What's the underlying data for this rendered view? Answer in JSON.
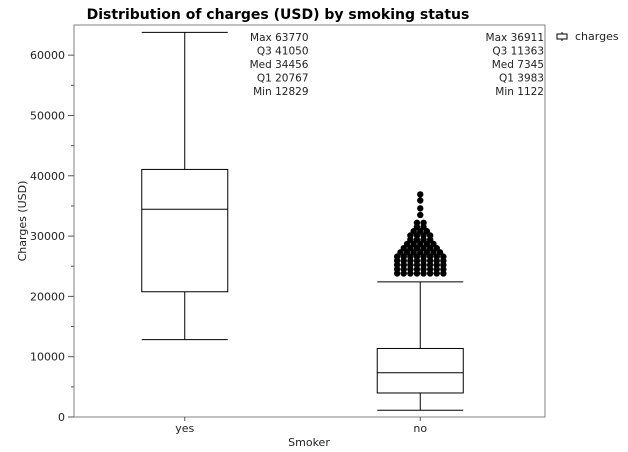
{
  "chart_data": {
    "type": "boxplot",
    "title": "Distribution of charges (USD) by smoking status",
    "xlabel": "Smoker",
    "ylabel": "Charges (USD)",
    "ylim": [
      0,
      65000
    ],
    "yticks": [
      0,
      10000,
      20000,
      30000,
      40000,
      50000,
      60000
    ],
    "grid": false,
    "legend_position": "top-right",
    "series": [
      {
        "name": "charges"
      }
    ],
    "categories": [
      "yes",
      "no"
    ],
    "boxes": [
      {
        "category": "yes",
        "max": 63770,
        "q3": 41050,
        "median": 34456,
        "q1": 20767,
        "min": 12829,
        "upper_whisker": 63770,
        "lower_whisker": 12829,
        "outliers": [],
        "stat_labels": [
          "Max 63770",
          "Q3  41050",
          "Med 34456",
          "Q1  20767",
          "Min 12829"
        ]
      },
      {
        "category": "no",
        "max": 36911,
        "q3": 11363,
        "median": 7345,
        "q1": 3983,
        "min": 1122,
        "upper_whisker": 22400,
        "lower_whisker": 1122,
        "outliers": [
          {
            "value": 23800,
            "count": 8
          },
          {
            "value": 24500,
            "count": 8
          },
          {
            "value": 25200,
            "count": 8
          },
          {
            "value": 25900,
            "count": 8
          },
          {
            "value": 26600,
            "count": 8
          },
          {
            "value": 27300,
            "count": 7
          },
          {
            "value": 28000,
            "count": 6
          },
          {
            "value": 28700,
            "count": 5
          },
          {
            "value": 29400,
            "count": 4
          },
          {
            "value": 30100,
            "count": 4
          },
          {
            "value": 30800,
            "count": 3
          },
          {
            "value": 31500,
            "count": 2
          },
          {
            "value": 32200,
            "count": 2
          },
          {
            "value": 33500,
            "count": 1
          },
          {
            "value": 34600,
            "count": 1
          },
          {
            "value": 35900,
            "count": 1
          },
          {
            "value": 36911,
            "count": 1
          }
        ],
        "stat_labels": [
          "Max 36911",
          "Q3  11363",
          "Med 7345",
          "Q1  3983",
          "Min 1122"
        ]
      }
    ]
  },
  "colors": {
    "box_stroke": "#000000",
    "frame": "#808080",
    "outlier_fill": "#000000",
    "text": "#222222"
  }
}
